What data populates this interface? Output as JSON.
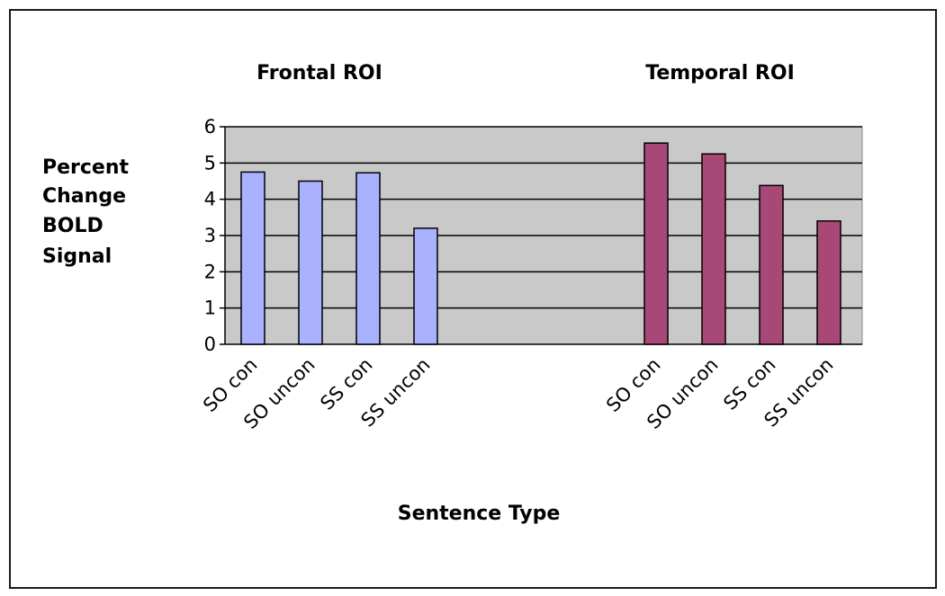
{
  "chart_data": {
    "type": "bar",
    "title": "",
    "panel_titles": [
      "Frontal ROI",
      "Temporal ROI"
    ],
    "ylabel_lines": [
      "Percent",
      "Change",
      "BOLD",
      "Signal"
    ],
    "xlabel": "Sentence Type",
    "ylim": [
      0,
      6
    ],
    "yticks": [
      "0",
      "1",
      "2",
      "3",
      "4",
      "5",
      "6"
    ],
    "grid": true,
    "legend": "none",
    "categories": [
      "SO con",
      "SO uncon",
      "SS con",
      "SS uncon",
      "SO con",
      "SO uncon",
      "SS con",
      "SS uncon"
    ],
    "groups": [
      {
        "values": [
          4.75,
          4.5,
          4.73,
          3.2
        ],
        "color": "#aab2ff"
      },
      {
        "values": [
          5.55,
          5.25,
          4.38,
          3.4
        ],
        "color": "#a84876"
      }
    ],
    "colors": {
      "plot_background": "#c9c9c9",
      "gridline": "#000000",
      "bar_outline": "#000000"
    }
  }
}
